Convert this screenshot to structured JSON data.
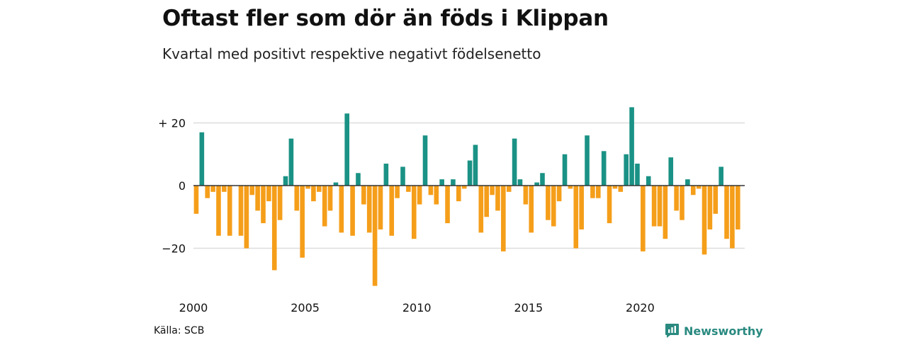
{
  "title": "Oftast fler som dör än föds i Klippan",
  "subtitle": "Kvartal med positivt respektive negativt födelsenetto",
  "source": "Källa: SCB",
  "brand": {
    "name": "Newsworthy",
    "icon": "newsworthy-logo-icon"
  },
  "colors": {
    "positive": "#1a9285",
    "negative": "#f59e1a",
    "grid": "#dddddd",
    "zero_line": "#333333"
  },
  "chart_data": {
    "type": "bar",
    "x_start": 2000,
    "x_step": 0.25,
    "x_ticks": [
      2000,
      2005,
      2010,
      2015,
      2020
    ],
    "x_tick_labels": [
      "2000",
      "2005",
      "2010",
      "2015",
      "2020"
    ],
    "y_ticks": [
      20,
      0,
      -20
    ],
    "y_tick_labels": [
      "+ 20",
      "0",
      "−20"
    ],
    "ylim": [
      -32,
      25
    ],
    "grid": true,
    "values": [
      -9,
      17,
      -4,
      -2,
      -16,
      -2,
      -16,
      0,
      -16,
      -20,
      -3,
      -8,
      -12,
      -5,
      -27,
      -11,
      3,
      15,
      -8,
      -23,
      -1,
      -5,
      -2,
      -13,
      -8,
      1,
      -15,
      23,
      -16,
      4,
      -6,
      -15,
      -32,
      -14,
      7,
      -16,
      -4,
      6,
      -2,
      -17,
      -6,
      16,
      -3,
      -6,
      2,
      -12,
      2,
      -5,
      -1,
      8,
      13,
      -15,
      -10,
      -3,
      -8,
      -21,
      -2,
      15,
      2,
      -6,
      -15,
      1,
      4,
      -11,
      -13,
      -5,
      10,
      -1,
      -20,
      -14,
      16,
      -4,
      -4,
      11,
      -12,
      -1,
      -2,
      10,
      25,
      7,
      -21,
      3,
      -13,
      -13,
      -17,
      9,
      -8,
      -11,
      2,
      -3,
      -1,
      -22,
      -14,
      -9,
      6,
      -17,
      -20,
      -14
    ]
  }
}
